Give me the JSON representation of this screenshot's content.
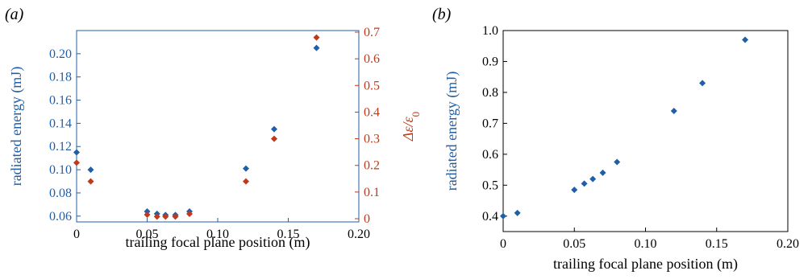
{
  "colors": {
    "blue": "#1f5fa8",
    "red": "#c0391b",
    "axis": "#000000"
  },
  "chart_data": [
    {
      "panel_label": "(a)",
      "type": "scatter",
      "xlabel": "trailing focal plane position (m)",
      "xlim": [
        0,
        0.2
      ],
      "x_ticks": [
        {
          "value": 0,
          "label": "0"
        },
        {
          "value": 0.05,
          "label": "0.05"
        },
        {
          "value": 0.1,
          "label": "0.10"
        },
        {
          "value": 0.15,
          "label": "0.15"
        },
        {
          "value": 0.2,
          "label": "0.20"
        }
      ],
      "left_axis": {
        "label": "radiated energy (mJ)",
        "ylim": [
          0.055,
          0.22
        ],
        "ticks": [
          {
            "value": 0.06,
            "label": "0.06"
          },
          {
            "value": 0.08,
            "label": "0.08"
          },
          {
            "value": 0.1,
            "label": "0.10"
          },
          {
            "value": 0.12,
            "label": "0.12"
          },
          {
            "value": 0.14,
            "label": "0.14"
          },
          {
            "value": 0.16,
            "label": "0.16"
          },
          {
            "value": 0.18,
            "label": "0.18"
          },
          {
            "value": 0.2,
            "label": "0.20"
          }
        ]
      },
      "right_axis": {
        "label_main": "Δε/ε",
        "label_sub": "0",
        "ylim": [
          0,
          0.7
        ],
        "ticks": [
          {
            "value": 0,
            "label": "0"
          },
          {
            "value": 0.1,
            "label": "0.1"
          },
          {
            "value": 0.2,
            "label": "0.2"
          },
          {
            "value": 0.3,
            "label": "0.3"
          },
          {
            "value": 0.4,
            "label": "0.4"
          },
          {
            "value": 0.5,
            "label": "0.5"
          },
          {
            "value": 0.6,
            "label": "0.6"
          },
          {
            "value": 0.7,
            "label": "0.7"
          }
        ]
      },
      "grid": false,
      "series": [
        {
          "axis": "left",
          "color": "#1f5fa8",
          "x": [
            0,
            0.01,
            0.05,
            0.057,
            0.063,
            0.07,
            0.08,
            0.12,
            0.14,
            0.17
          ],
          "y": [
            0.115,
            0.1,
            0.064,
            0.062,
            0.061,
            0.061,
            0.064,
            0.101,
            0.135,
            0.205
          ]
        },
        {
          "axis": "right",
          "color": "#c0391b",
          "x": [
            0,
            0.01,
            0.05,
            0.057,
            0.063,
            0.07,
            0.08,
            0.12,
            0.14,
            0.17
          ],
          "y": [
            0.21,
            0.14,
            0.015,
            0.008,
            0.008,
            0.008,
            0.018,
            0.14,
            0.3,
            0.68
          ]
        }
      ]
    },
    {
      "panel_label": "(b)",
      "type": "scatter",
      "xlabel": "trailing focal plane position (m)",
      "ylabel": "radiated energy (mJ)",
      "xlim": [
        0,
        0.2
      ],
      "ylim": [
        0.35,
        1.0
      ],
      "x_ticks": [
        {
          "value": 0,
          "label": "0"
        },
        {
          "value": 0.05,
          "label": "0.05"
        },
        {
          "value": 0.1,
          "label": "0.10"
        },
        {
          "value": 0.15,
          "label": "0.15"
        },
        {
          "value": 0.2,
          "label": "0.20"
        }
      ],
      "y_ticks": [
        {
          "value": 0.4,
          "label": "0.4"
        },
        {
          "value": 0.5,
          "label": "0.5"
        },
        {
          "value": 0.6,
          "label": "0.6"
        },
        {
          "value": 0.7,
          "label": "0.7"
        },
        {
          "value": 0.8,
          "label": "0.8"
        },
        {
          "value": 0.9,
          "label": "0.9"
        },
        {
          "value": 1.0,
          "label": "1.0"
        }
      ],
      "grid": false,
      "series": [
        {
          "color": "#1f5fa8",
          "x": [
            0,
            0.01,
            0.05,
            0.057,
            0.063,
            0.07,
            0.08,
            0.12,
            0.14,
            0.17
          ],
          "y": [
            0.4,
            0.41,
            0.485,
            0.505,
            0.52,
            0.54,
            0.575,
            0.74,
            0.83,
            0.97
          ]
        }
      ]
    }
  ]
}
